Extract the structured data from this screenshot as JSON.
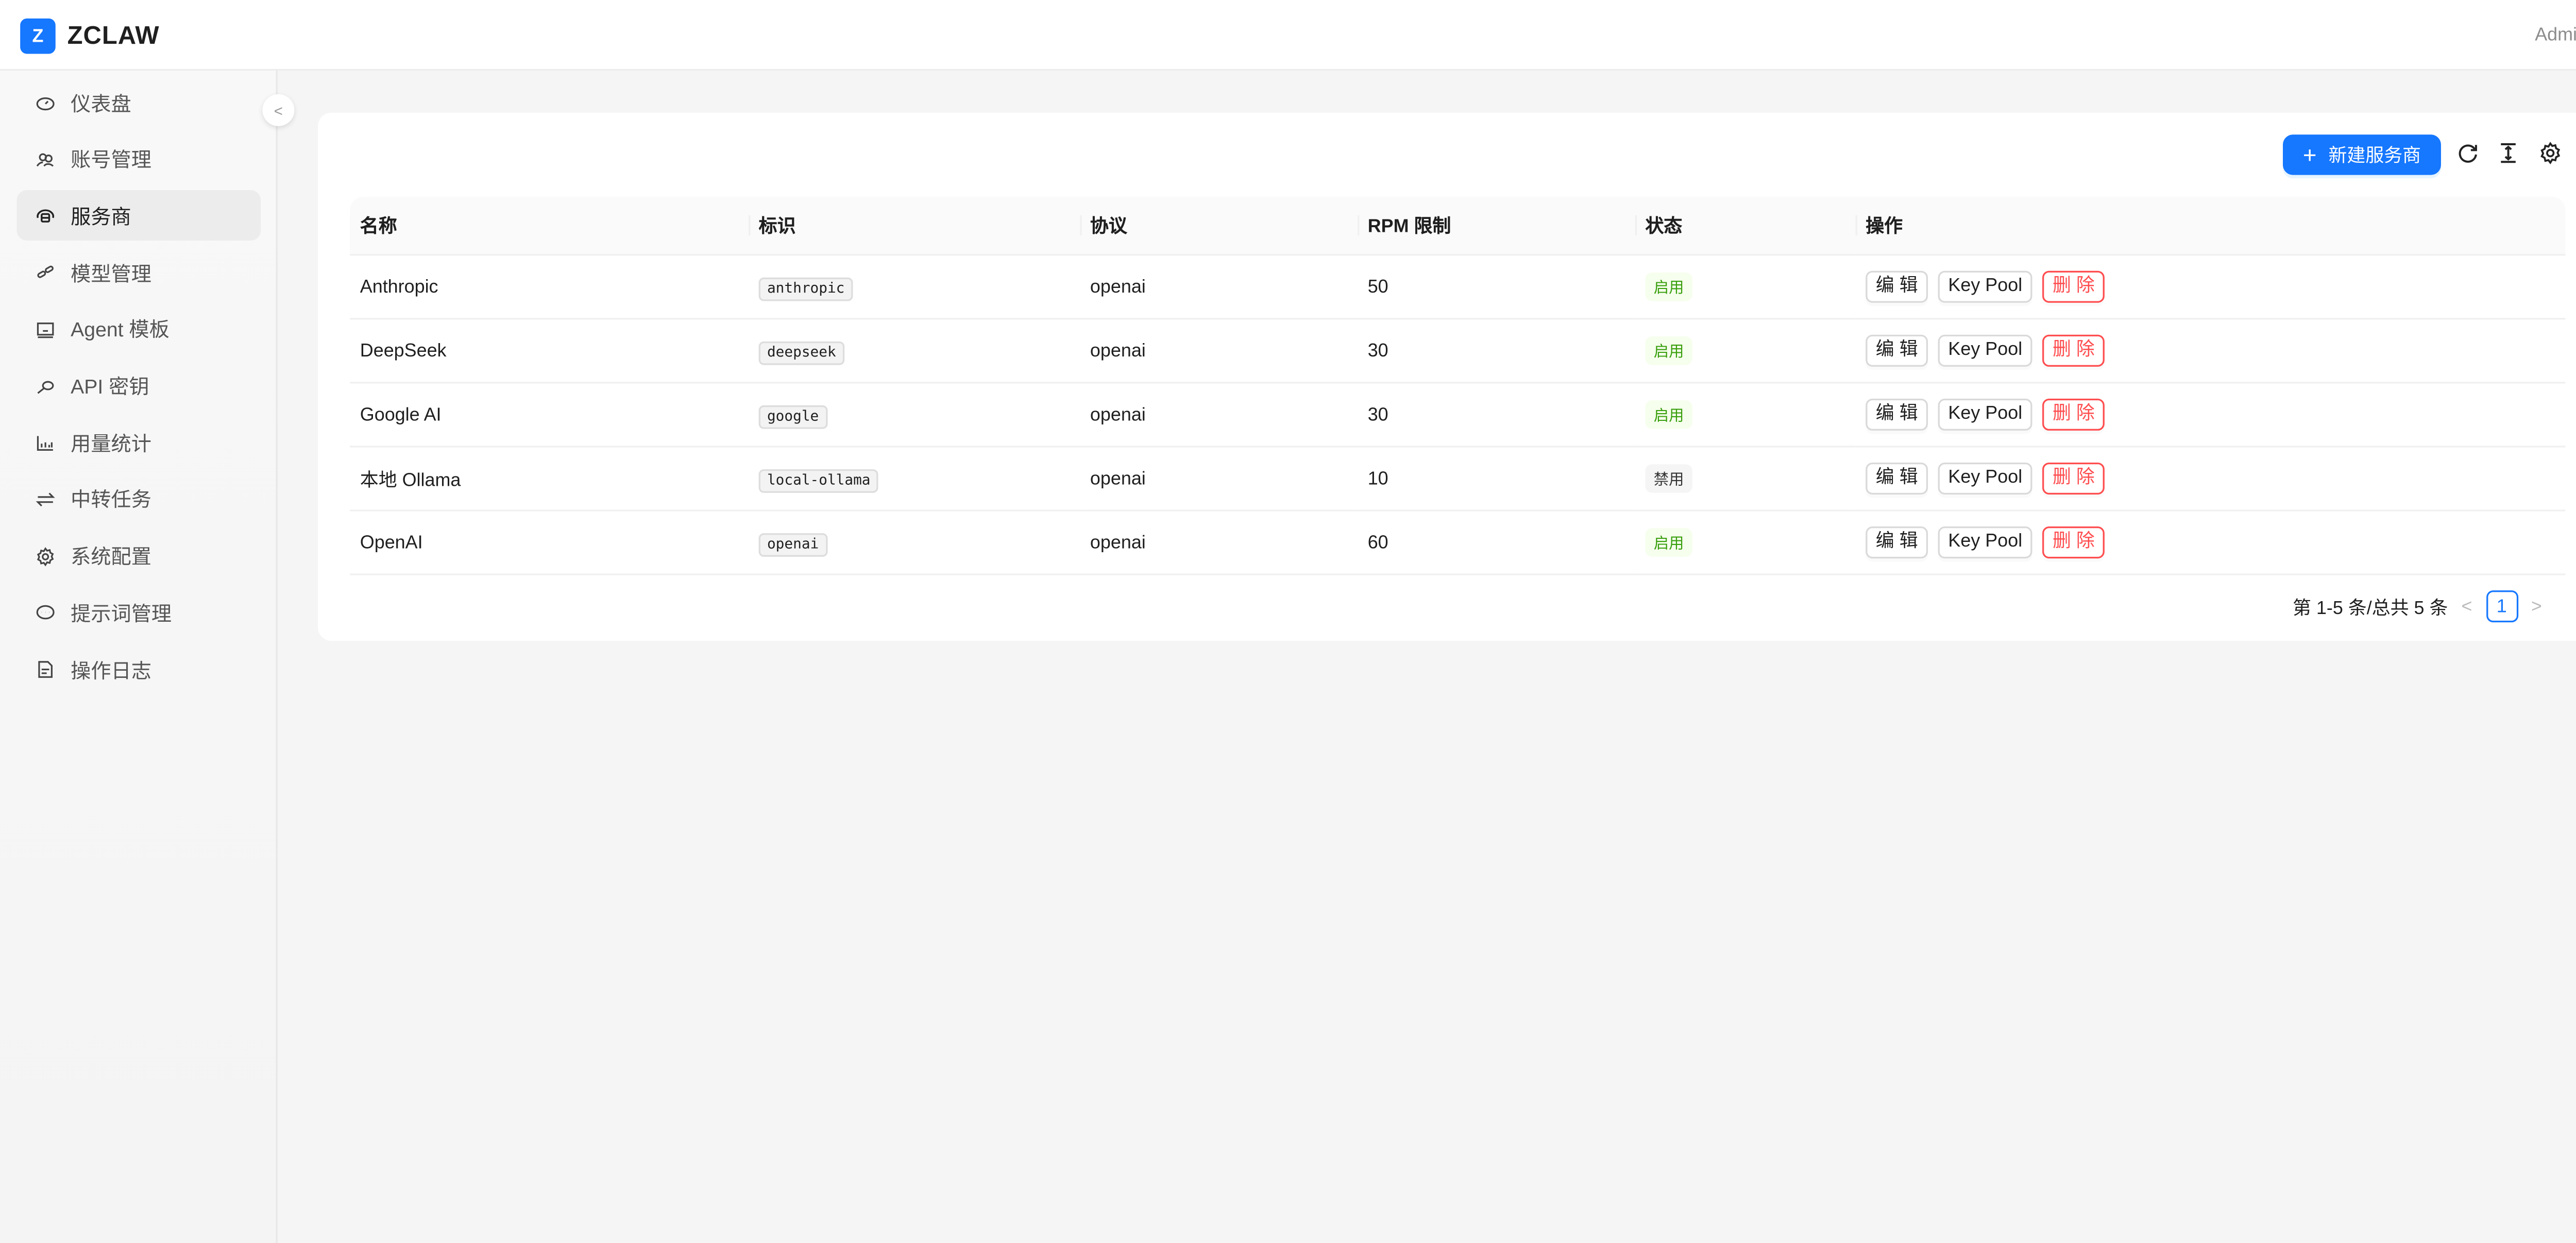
{
  "header": {
    "logo_letter": "Z",
    "brand": "ZCLAW",
    "user": "Admin",
    "accent": "#1677ff"
  },
  "sidebar": {
    "items": [
      {
        "label": "仪表盘",
        "icon": "dashboard-icon"
      },
      {
        "label": "账号管理",
        "icon": "users-icon"
      },
      {
        "label": "服务商",
        "icon": "cloud-server-icon",
        "active": true
      },
      {
        "label": "模型管理",
        "icon": "link-icon"
      },
      {
        "label": "Agent 模板",
        "icon": "robot-icon"
      },
      {
        "label": "API 密钥",
        "icon": "key-icon"
      },
      {
        "label": "用量统计",
        "icon": "bar-chart-icon"
      },
      {
        "label": "中转任务",
        "icon": "swap-icon"
      },
      {
        "label": "系统配置",
        "icon": "gear-icon"
      },
      {
        "label": "提示词管理",
        "icon": "message-icon"
      },
      {
        "label": "操作日志",
        "icon": "file-icon"
      }
    ]
  },
  "toolbar": {
    "new_label": "新建服务商",
    "icons": [
      "reload-icon",
      "column-height-icon",
      "setting-icon"
    ]
  },
  "table": {
    "columns": [
      "名称",
      "标识",
      "协议",
      "RPM 限制",
      "状态",
      "操作"
    ],
    "rows": [
      {
        "name": "Anthropic",
        "slug": "anthropic",
        "protocol": "openai",
        "rpm": "50",
        "status": "启用",
        "enabled": true
      },
      {
        "name": "DeepSeek",
        "slug": "deepseek",
        "protocol": "openai",
        "rpm": "30",
        "status": "启用",
        "enabled": true
      },
      {
        "name": "Google AI",
        "slug": "google",
        "protocol": "openai",
        "rpm": "30",
        "status": "启用",
        "enabled": true
      },
      {
        "name": "本地 Ollama",
        "slug": "local-ollama",
        "protocol": "openai",
        "rpm": "10",
        "status": "禁用",
        "enabled": false
      },
      {
        "name": "OpenAI",
        "slug": "openai",
        "protocol": "openai",
        "rpm": "60",
        "status": "启用",
        "enabled": true
      }
    ],
    "actions": {
      "edit": "编 辑",
      "keypool": "Key Pool",
      "delete": "删 除"
    }
  },
  "pagination": {
    "summary": "第 1-5 条/总共 5 条",
    "current": "1"
  }
}
